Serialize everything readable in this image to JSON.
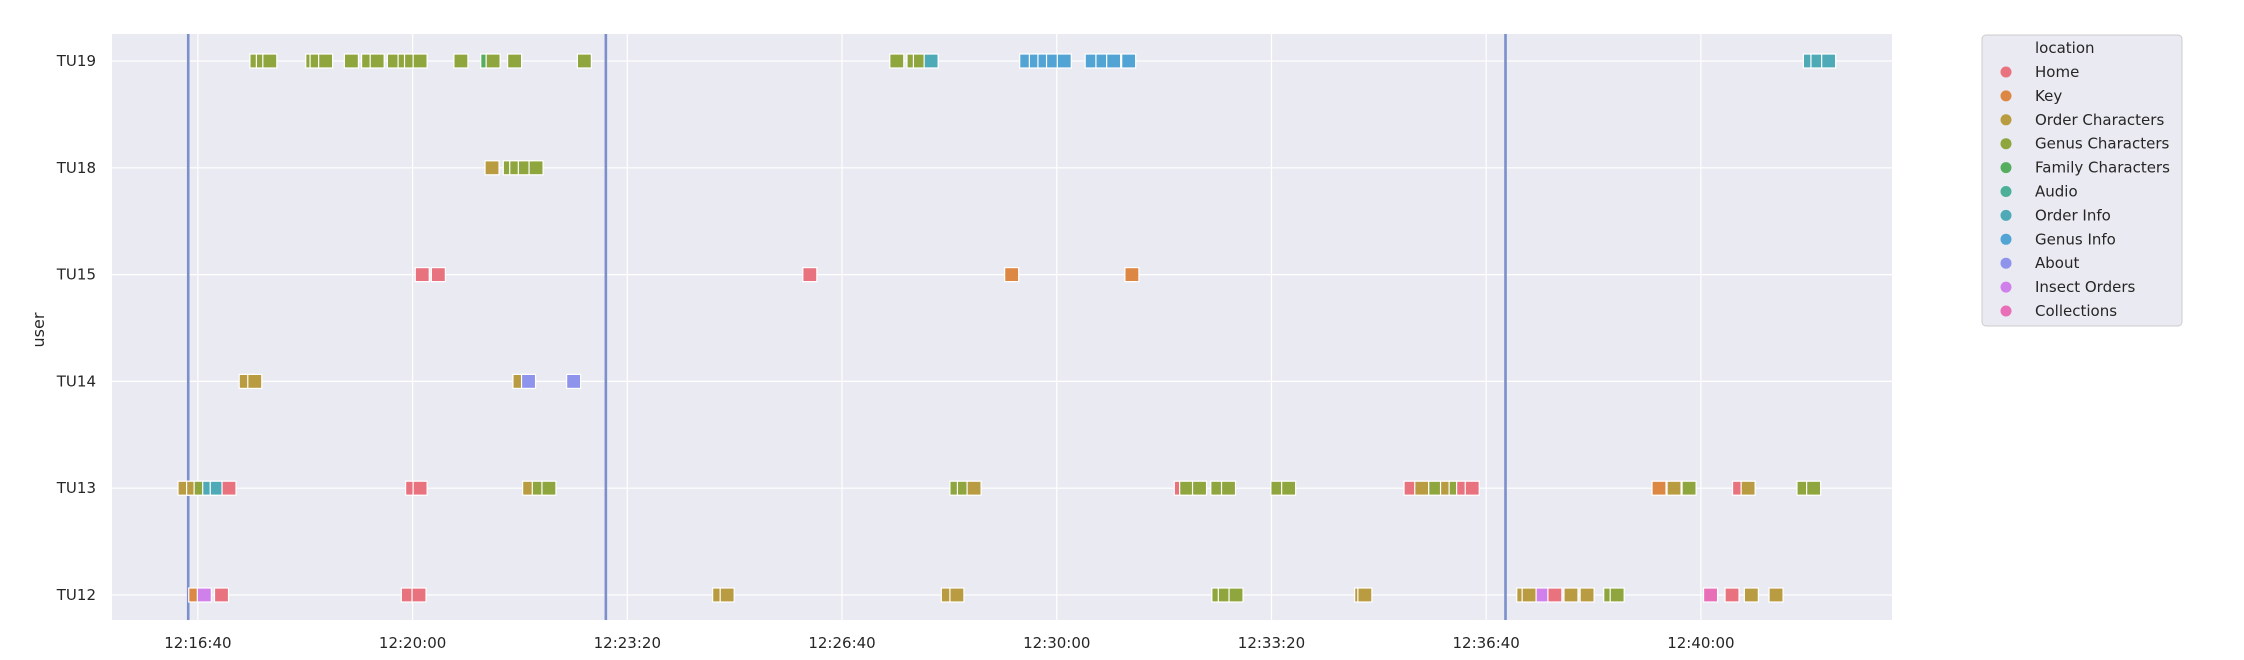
{
  "chart_data": {
    "type": "scatter",
    "xlabel": "",
    "ylabel": "user",
    "legend_title": "location",
    "legend_position": "outside right",
    "grid": true,
    "x_tick_labels": [
      "12:16:40",
      "12:20:00",
      "12:23:20",
      "12:26:40",
      "12:30:00",
      "12:33:20",
      "12:36:40",
      "12:40:00"
    ],
    "x_tick_seconds": [
      1000,
      1200,
      1400,
      1600,
      1800,
      2000,
      2200,
      2400
    ],
    "xlim_seconds": [
      920,
      2578
    ],
    "y_categories": [
      "TU19",
      "TU18",
      "TU15",
      "TU14",
      "TU13",
      "TU12"
    ],
    "vertical_lines_seconds": [
      991,
      1380,
      2218
    ],
    "vertical_line_color": "#7b8fcb",
    "categories": [
      {
        "name": "Home",
        "color": "#e8737f"
      },
      {
        "name": "Key",
        "color": "#dd8745"
      },
      {
        "name": "Order Characters",
        "color": "#b99b41"
      },
      {
        "name": "Genus Characters",
        "color": "#8fa53e"
      },
      {
        "name": "Family Characters",
        "color": "#55ad5f"
      },
      {
        "name": "Audio",
        "color": "#4caf97"
      },
      {
        "name": "Order Info",
        "color": "#4eaab6"
      },
      {
        "name": "Genus Info",
        "color": "#51a4d4"
      },
      {
        "name": "About",
        "color": "#8e93ec"
      },
      {
        "name": "Insect Orders",
        "color": "#cf80ea"
      },
      {
        "name": "Collections",
        "color": "#e86eb8"
      }
    ],
    "points": [
      {
        "user": "TU19",
        "seconds": 1055,
        "location": "Genus Characters"
      },
      {
        "user": "TU19",
        "seconds": 1061,
        "location": "Genus Characters"
      },
      {
        "user": "TU19",
        "seconds": 1067,
        "location": "Genus Characters"
      },
      {
        "user": "TU19",
        "seconds": 1107,
        "location": "Genus Characters"
      },
      {
        "user": "TU19",
        "seconds": 1111,
        "location": "Genus Characters"
      },
      {
        "user": "TU19",
        "seconds": 1119,
        "location": "Genus Characters"
      },
      {
        "user": "TU19",
        "seconds": 1143,
        "location": "Genus Characters"
      },
      {
        "user": "TU19",
        "seconds": 1159,
        "location": "Genus Characters"
      },
      {
        "user": "TU19",
        "seconds": 1167,
        "location": "Genus Characters"
      },
      {
        "user": "TU19",
        "seconds": 1183,
        "location": "Genus Characters"
      },
      {
        "user": "TU19",
        "seconds": 1193,
        "location": "Genus Characters"
      },
      {
        "user": "TU19",
        "seconds": 1199,
        "location": "Genus Characters"
      },
      {
        "user": "TU19",
        "seconds": 1207,
        "location": "Genus Characters"
      },
      {
        "user": "TU19",
        "seconds": 1245,
        "location": "Genus Characters"
      },
      {
        "user": "TU19",
        "seconds": 1270,
        "location": "Family Characters"
      },
      {
        "user": "TU19",
        "seconds": 1275,
        "location": "Genus Characters"
      },
      {
        "user": "TU19",
        "seconds": 1295,
        "location": "Genus Characters"
      },
      {
        "user": "TU19",
        "seconds": 1360,
        "location": "Genus Characters"
      },
      {
        "user": "TU19",
        "seconds": 1651,
        "location": "Genus Characters"
      },
      {
        "user": "TU19",
        "seconds": 1667,
        "location": "Genus Characters"
      },
      {
        "user": "TU19",
        "seconds": 1673,
        "location": "Genus Characters"
      },
      {
        "user": "TU19",
        "seconds": 1683,
        "location": "Order Info"
      },
      {
        "user": "TU19",
        "seconds": 1772,
        "location": "Genus Info"
      },
      {
        "user": "TU19",
        "seconds": 1781,
        "location": "Genus Info"
      },
      {
        "user": "TU19",
        "seconds": 1789,
        "location": "Genus Info"
      },
      {
        "user": "TU19",
        "seconds": 1797,
        "location": "Genus Info"
      },
      {
        "user": "TU19",
        "seconds": 1807,
        "location": "Genus Info"
      },
      {
        "user": "TU19",
        "seconds": 1833,
        "location": "Genus Info"
      },
      {
        "user": "TU19",
        "seconds": 1843,
        "location": "Genus Info"
      },
      {
        "user": "TU19",
        "seconds": 1853,
        "location": "Genus Info"
      },
      {
        "user": "TU19",
        "seconds": 1867,
        "location": "Genus Info"
      },
      {
        "user": "TU19",
        "seconds": 2502,
        "location": "Order Info"
      },
      {
        "user": "TU19",
        "seconds": 2509,
        "location": "Order Info"
      },
      {
        "user": "TU19",
        "seconds": 2519,
        "location": "Order Info"
      },
      {
        "user": "TU18",
        "seconds": 1274,
        "location": "Order Characters"
      },
      {
        "user": "TU18",
        "seconds": 1291,
        "location": "Genus Characters"
      },
      {
        "user": "TU18",
        "seconds": 1297,
        "location": "Genus Characters"
      },
      {
        "user": "TU18",
        "seconds": 1305,
        "location": "Genus Characters"
      },
      {
        "user": "TU18",
        "seconds": 1315,
        "location": "Genus Characters"
      },
      {
        "user": "TU15",
        "seconds": 1209,
        "location": "Home"
      },
      {
        "user": "TU15",
        "seconds": 1224,
        "location": "Home"
      },
      {
        "user": "TU15",
        "seconds": 1570,
        "location": "Home"
      },
      {
        "user": "TU15",
        "seconds": 1758,
        "location": "Key"
      },
      {
        "user": "TU15",
        "seconds": 1870,
        "location": "Key"
      },
      {
        "user": "TU14",
        "seconds": 1045,
        "location": "Order Characters"
      },
      {
        "user": "TU14",
        "seconds": 1053,
        "location": "Order Characters"
      },
      {
        "user": "TU14",
        "seconds": 1300,
        "location": "Order Characters"
      },
      {
        "user": "TU14",
        "seconds": 1308,
        "location": "About"
      },
      {
        "user": "TU14",
        "seconds": 1350,
        "location": "About"
      },
      {
        "user": "TU13",
        "seconds": 988,
        "location": "Order Characters"
      },
      {
        "user": "TU13",
        "seconds": 996,
        "location": "Order Characters"
      },
      {
        "user": "TU13",
        "seconds": 1003,
        "location": "Genus Characters"
      },
      {
        "user": "TU13",
        "seconds": 1011,
        "location": "Order Info"
      },
      {
        "user": "TU13",
        "seconds": 1018,
        "location": "Order Info"
      },
      {
        "user": "TU13",
        "seconds": 1029,
        "location": "Home"
      },
      {
        "user": "TU13",
        "seconds": 1200,
        "location": "Home"
      },
      {
        "user": "TU13",
        "seconds": 1207,
        "location": "Home"
      },
      {
        "user": "TU13",
        "seconds": 1309,
        "location": "Order Characters"
      },
      {
        "user": "TU13",
        "seconds": 1318,
        "location": "Genus Characters"
      },
      {
        "user": "TU13",
        "seconds": 1327,
        "location": "Genus Characters"
      },
      {
        "user": "TU13",
        "seconds": 1707,
        "location": "Genus Characters"
      },
      {
        "user": "TU13",
        "seconds": 1714,
        "location": "Genus Characters"
      },
      {
        "user": "TU13",
        "seconds": 1723,
        "location": "Order Characters"
      },
      {
        "user": "TU13",
        "seconds": 1916,
        "location": "Home"
      },
      {
        "user": "TU13",
        "seconds": 1921,
        "location": "Genus Characters"
      },
      {
        "user": "TU13",
        "seconds": 1933,
        "location": "Genus Characters"
      },
      {
        "user": "TU13",
        "seconds": 1950,
        "location": "Genus Characters"
      },
      {
        "user": "TU13",
        "seconds": 1960,
        "location": "Genus Characters"
      },
      {
        "user": "TU13",
        "seconds": 2006,
        "location": "Genus Characters"
      },
      {
        "user": "TU13",
        "seconds": 2016,
        "location": "Genus Characters"
      },
      {
        "user": "TU13",
        "seconds": 2130,
        "location": "Home"
      },
      {
        "user": "TU13",
        "seconds": 2140,
        "location": "Order Characters"
      },
      {
        "user": "TU13",
        "seconds": 2153,
        "location": "Genus Characters"
      },
      {
        "user": "TU13",
        "seconds": 2164,
        "location": "Order Characters"
      },
      {
        "user": "TU13",
        "seconds": 2172,
        "location": "Genus Characters"
      },
      {
        "user": "TU13",
        "seconds": 2179,
        "location": "Home"
      },
      {
        "user": "TU13",
        "seconds": 2187,
        "location": "Home"
      },
      {
        "user": "TU13",
        "seconds": 2361,
        "location": "Key"
      },
      {
        "user": "TU13",
        "seconds": 2375,
        "location": "Order Characters"
      },
      {
        "user": "TU13",
        "seconds": 2389,
        "location": "Genus Characters"
      },
      {
        "user": "TU13",
        "seconds": 2436,
        "location": "Home"
      },
      {
        "user": "TU13",
        "seconds": 2444,
        "location": "Order Characters"
      },
      {
        "user": "TU13",
        "seconds": 2496,
        "location": "Genus Characters"
      },
      {
        "user": "TU13",
        "seconds": 2505,
        "location": "Genus Characters"
      },
      {
        "user": "TU12",
        "seconds": 998,
        "location": "Key"
      },
      {
        "user": "TU12",
        "seconds": 1006,
        "location": "Insect Orders"
      },
      {
        "user": "TU12",
        "seconds": 1022,
        "location": "Home"
      },
      {
        "user": "TU12",
        "seconds": 1196,
        "location": "Home"
      },
      {
        "user": "TU12",
        "seconds": 1206,
        "location": "Home"
      },
      {
        "user": "TU12",
        "seconds": 1486,
        "location": "Order Characters"
      },
      {
        "user": "TU12",
        "seconds": 1493,
        "location": "Order Characters"
      },
      {
        "user": "TU12",
        "seconds": 1699,
        "location": "Order Characters"
      },
      {
        "user": "TU12",
        "seconds": 1707,
        "location": "Order Characters"
      },
      {
        "user": "TU12",
        "seconds": 1951,
        "location": "Genus Characters"
      },
      {
        "user": "TU12",
        "seconds": 1957,
        "location": "Genus Characters"
      },
      {
        "user": "TU12",
        "seconds": 1967,
        "location": "Genus Characters"
      },
      {
        "user": "TU12",
        "seconds": 2084,
        "location": "Order Characters"
      },
      {
        "user": "TU12",
        "seconds": 2087,
        "location": "Order Characters"
      },
      {
        "user": "TU12",
        "seconds": 2235,
        "location": "Order Characters"
      },
      {
        "user": "TU12",
        "seconds": 2240,
        "location": "Order Characters"
      },
      {
        "user": "TU12",
        "seconds": 2253,
        "location": "Insect Orders"
      },
      {
        "user": "TU12",
        "seconds": 2264,
        "location": "Home"
      },
      {
        "user": "TU12",
        "seconds": 2279,
        "location": "Order Characters"
      },
      {
        "user": "TU12",
        "seconds": 2294,
        "location": "Order Characters"
      },
      {
        "user": "TU12",
        "seconds": 2316,
        "location": "Genus Characters"
      },
      {
        "user": "TU12",
        "seconds": 2322,
        "location": "Genus Characters"
      },
      {
        "user": "TU12",
        "seconds": 2409,
        "location": "Collections"
      },
      {
        "user": "TU12",
        "seconds": 2429,
        "location": "Home"
      },
      {
        "user": "TU12",
        "seconds": 2447,
        "location": "Order Characters"
      },
      {
        "user": "TU12",
        "seconds": 2470,
        "location": "Order Characters"
      }
    ]
  }
}
